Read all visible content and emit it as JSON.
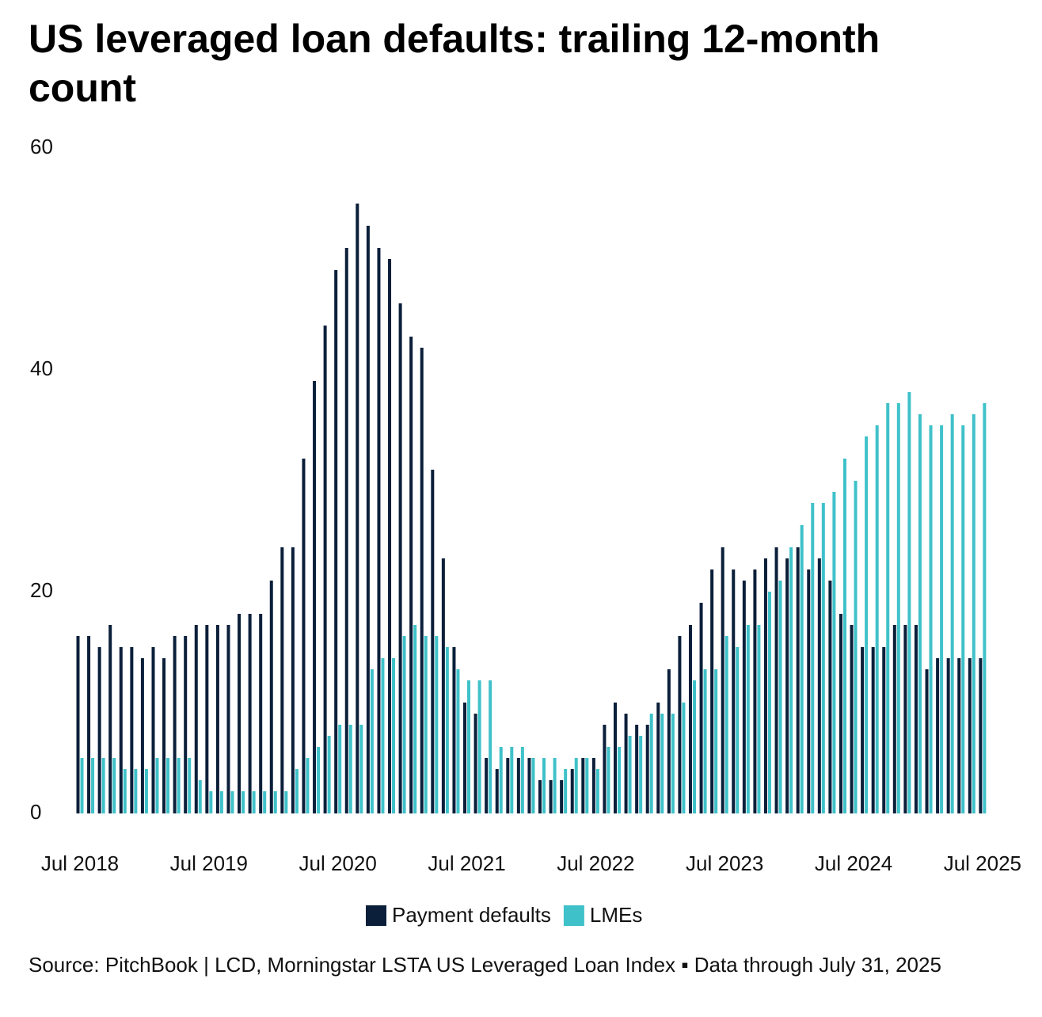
{
  "chart_data": {
    "type": "bar",
    "title": "US leveraged loan defaults: trailing 12-month count",
    "source": "Source: PitchBook | LCD, Morningstar LSTA US Leveraged Loan Index ▪ Data through July 31, 2025",
    "categories": [
      "Jul 2018",
      null,
      null,
      null,
      null,
      null,
      null,
      null,
      null,
      null,
      null,
      null,
      "Jul 2019",
      null,
      null,
      null,
      null,
      null,
      null,
      null,
      null,
      null,
      null,
      null,
      "Jul 2020",
      null,
      null,
      null,
      null,
      null,
      null,
      null,
      null,
      null,
      null,
      null,
      "Jul 2021",
      null,
      null,
      null,
      null,
      null,
      null,
      null,
      null,
      null,
      null,
      null,
      "Jul 2022",
      null,
      null,
      null,
      null,
      null,
      null,
      null,
      null,
      null,
      null,
      null,
      "Jul 2023",
      null,
      null,
      null,
      null,
      null,
      null,
      null,
      null,
      null,
      null,
      null,
      "Jul 2024",
      null,
      null,
      null,
      null,
      null,
      null,
      null,
      null,
      null,
      null,
      null,
      "Jul 2025"
    ],
    "series": [
      {
        "name": "Payment defaults",
        "color": "#0b1f3a",
        "values": [
          16,
          16,
          15,
          17,
          15,
          15,
          14,
          15,
          14,
          16,
          16,
          17,
          17,
          17,
          17,
          18,
          18,
          18,
          21,
          24,
          24,
          32,
          39,
          44,
          49,
          51,
          55,
          53,
          51,
          50,
          46,
          43,
          42,
          31,
          23,
          15,
          10,
          9,
          5,
          4,
          5,
          5,
          5,
          3,
          3,
          3,
          4,
          5,
          5,
          8,
          10,
          9,
          8,
          8,
          10,
          13,
          16,
          17,
          19,
          22,
          24,
          22,
          21,
          22,
          23,
          24,
          23,
          24,
          22,
          23,
          21,
          18,
          17,
          15,
          15,
          15,
          17,
          17,
          17,
          13,
          14,
          14,
          14,
          14,
          14
        ]
      },
      {
        "name": "LMEs",
        "color": "#3fc1c9",
        "values": [
          5,
          5,
          5,
          5,
          4,
          4,
          4,
          5,
          5,
          5,
          5,
          3,
          2,
          2,
          2,
          2,
          2,
          2,
          2,
          2,
          4,
          5,
          6,
          7,
          8,
          8,
          8,
          13,
          14,
          14,
          16,
          17,
          16,
          16,
          15,
          13,
          12,
          12,
          12,
          6,
          6,
          6,
          5,
          5,
          5,
          4,
          5,
          5,
          4,
          6,
          6,
          7,
          7,
          9,
          9,
          9,
          10,
          12,
          13,
          13,
          16,
          15,
          17,
          17,
          20,
          21,
          24,
          26,
          28,
          28,
          29,
          32,
          30,
          34,
          35,
          37,
          37,
          38,
          36,
          35,
          35,
          36,
          35,
          36,
          37
        ]
      }
    ],
    "ylim": [
      0,
      60
    ],
    "yticks": [
      0,
      20,
      40,
      60
    ],
    "grid": false,
    "legend": "bottom"
  }
}
